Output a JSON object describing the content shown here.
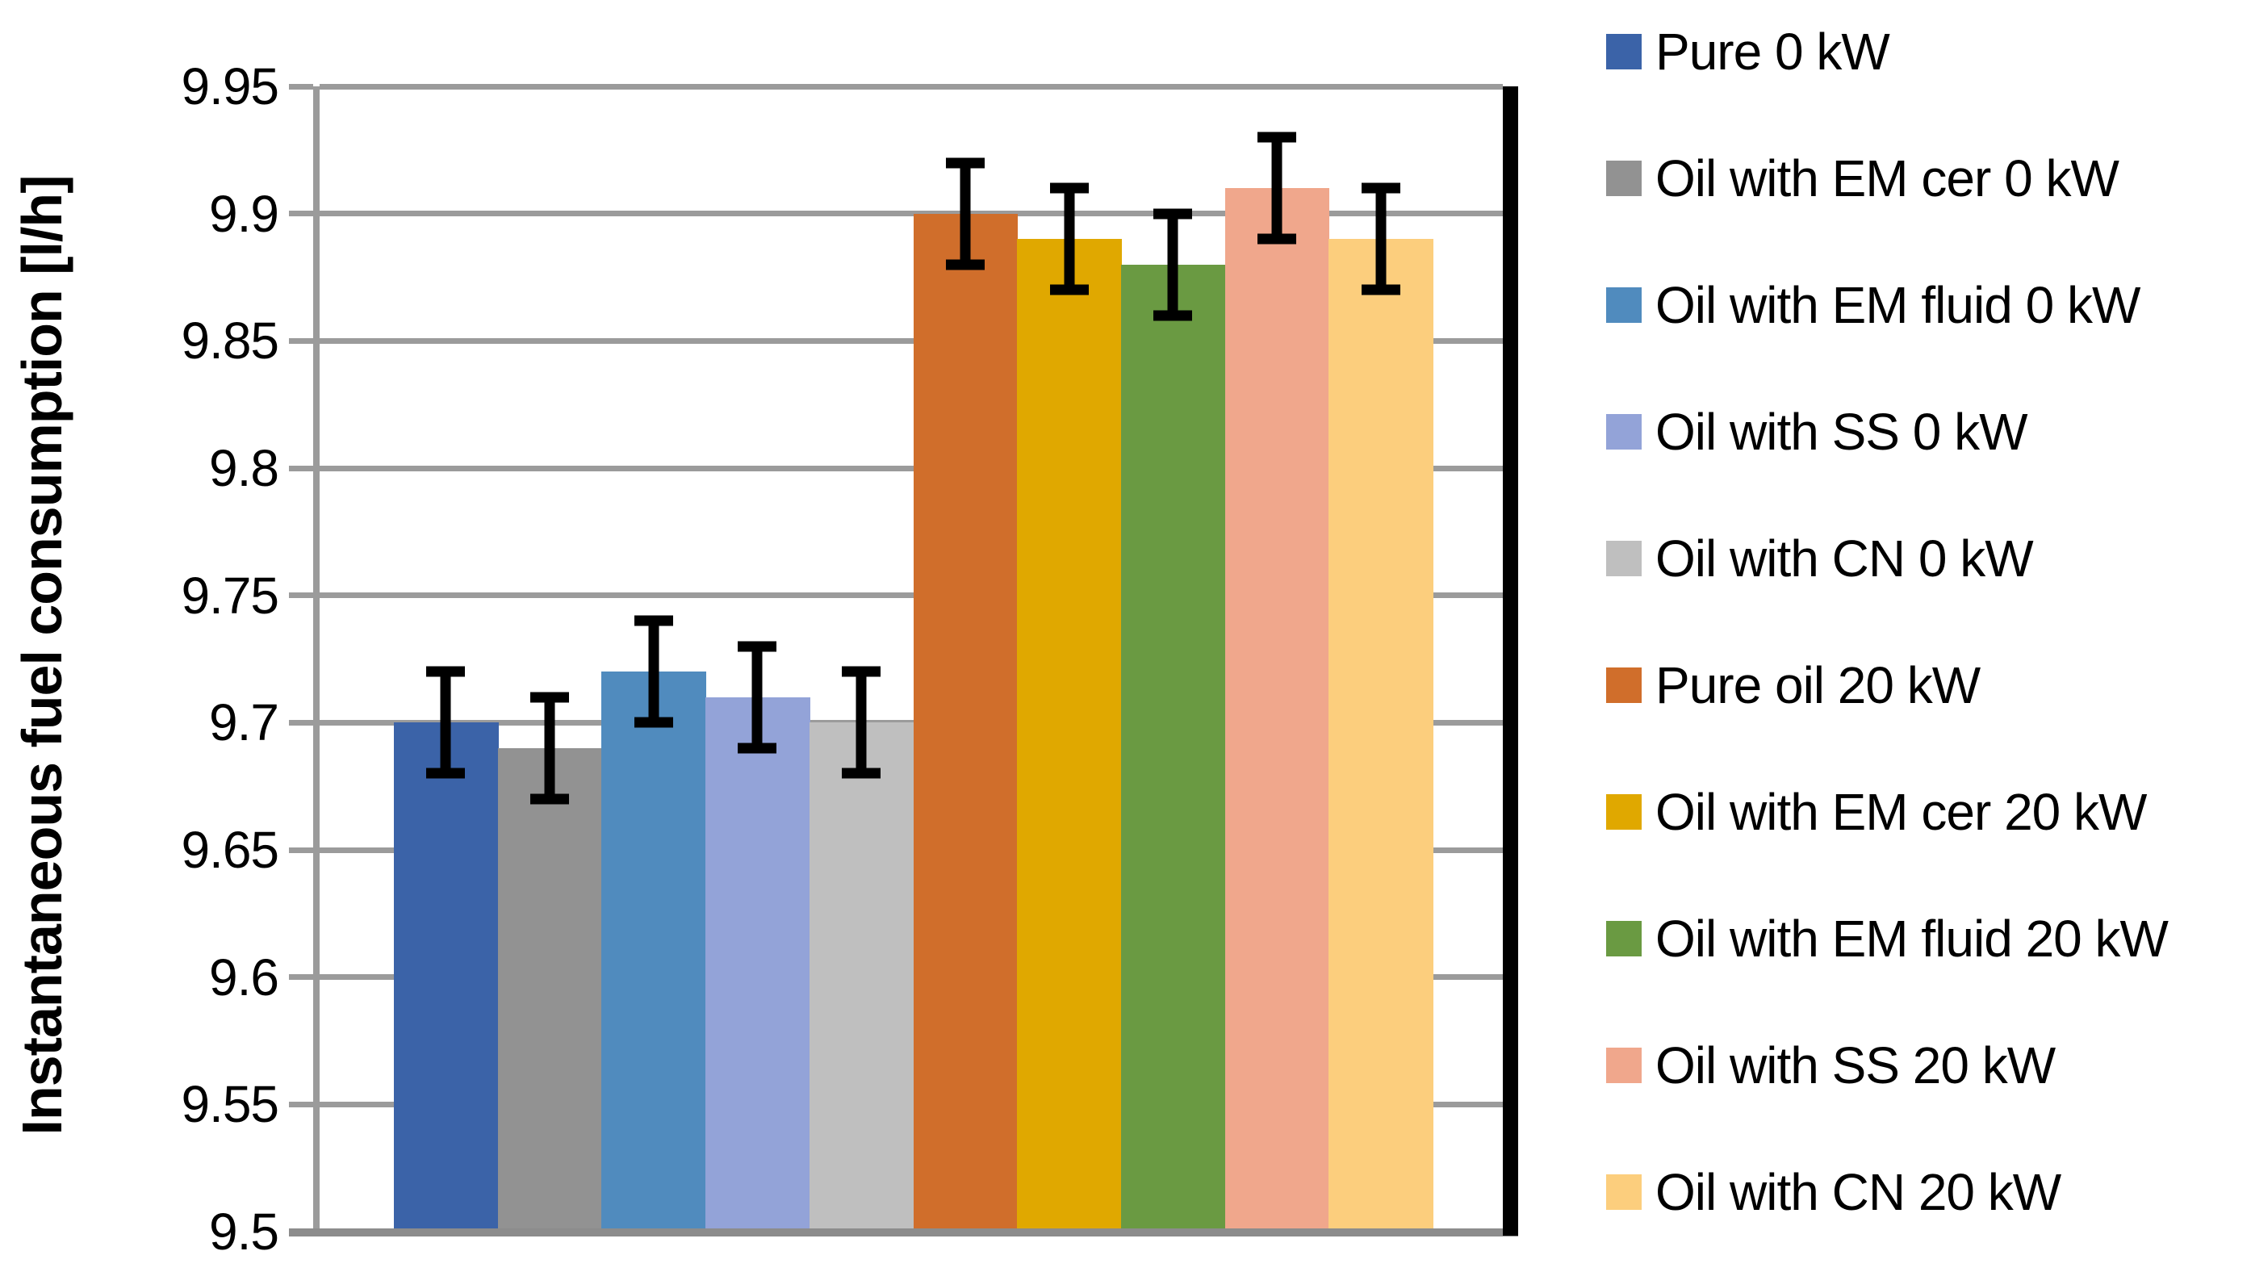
{
  "chart_data": {
    "type": "bar",
    "title": "",
    "xlabel": "",
    "ylabel": "Instantaneous fuel consumption [l/h]",
    "ylim": [
      9.5,
      9.95
    ],
    "ytick_step": 0.05,
    "yticks": [
      9.5,
      9.55,
      9.6,
      9.65,
      9.7,
      9.75,
      9.8,
      9.85,
      9.9,
      9.95
    ],
    "ytick_labels": [
      "9.5",
      "9.55",
      "9.6",
      "9.65",
      "9.7",
      "9.75",
      "9.8",
      "9.85",
      "9.9",
      "9.95"
    ],
    "grid": true,
    "legend_position": "right",
    "categories": [
      "Pure 0 kW",
      "Oil with EM cer 0 kW",
      "Oil with EM fluid 0 kW",
      "Oil with SS 0 kW",
      "Oil with CN 0 kW",
      "Pure oil 20 kW",
      "Oil with EM cer 20 kW",
      "Oil with EM fluid 20 kW",
      "Oil with SS 20 kW",
      "Oil with CN 20 kW"
    ],
    "bars": [
      {
        "label": "Pure 0 kW",
        "value": 9.7,
        "error": 0.02,
        "color": "#3B63A8"
      },
      {
        "label": "Oil with EM cer 0 kW",
        "value": 9.69,
        "error": 0.02,
        "color": "#929292"
      },
      {
        "label": "Oil with EM fluid 0 kW",
        "value": 9.72,
        "error": 0.02,
        "color": "#508BBE"
      },
      {
        "label": "Oil with SS 0 kW",
        "value": 9.71,
        "error": 0.02,
        "color": "#93A3D8"
      },
      {
        "label": "Oil with CN 0 kW",
        "value": 9.7,
        "error": 0.02,
        "color": "#BFBFBF"
      },
      {
        "label": "Pure oil 20 kW",
        "value": 9.9,
        "error": 0.02,
        "color": "#D06E2B"
      },
      {
        "label": "Oil with EM cer 20 kW",
        "value": 9.89,
        "error": 0.02,
        "color": "#E0A800"
      },
      {
        "label": "Oil with EM fluid 20 kW",
        "value": 9.88,
        "error": 0.02,
        "color": "#6A9A42"
      },
      {
        "label": "Oil with SS 20 kW",
        "value": 9.91,
        "error": 0.02,
        "color": "#F0A78C"
      },
      {
        "label": "Oil with CN 20 kW",
        "value": 9.89,
        "error": 0.02,
        "color": "#FCCE7D"
      }
    ],
    "colors": {
      "gridline": "#9B9B9B",
      "axis": "#8C8C8C",
      "right_border": "#000000",
      "error_bar": "#000000",
      "text": "#000000"
    }
  }
}
